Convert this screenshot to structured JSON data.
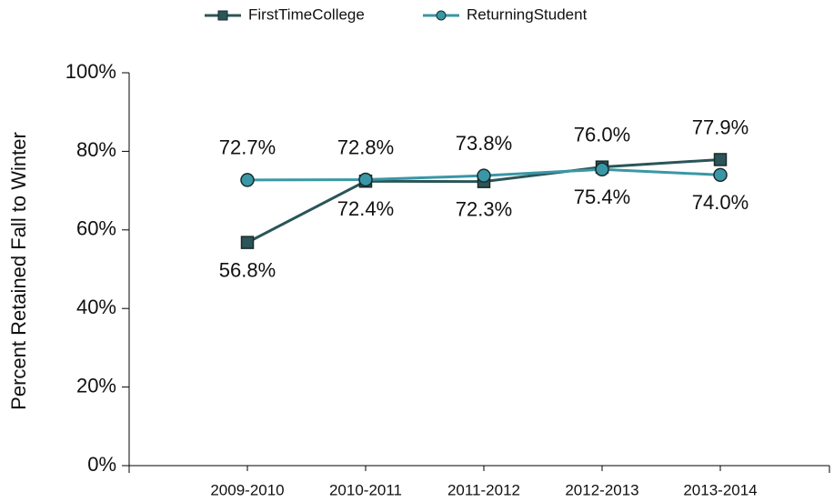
{
  "chart_data": {
    "type": "line",
    "y_label": "Percent Retained Fall to Winter",
    "categories": [
      "2009-2010",
      "2010-2011",
      "2011-2012",
      "2012-2013",
      "2013-2014"
    ],
    "series": [
      {
        "name": "FirstTimeCollege",
        "color": "#2b5558",
        "marker": "square",
        "values": [
          56.8,
          72.4,
          72.3,
          76.0,
          77.9
        ],
        "value_labels": [
          "56.8%",
          "72.4%",
          "72.3%",
          "76.0%",
          "77.9%"
        ]
      },
      {
        "name": "ReturningStudent",
        "color": "#3a97a6",
        "marker": "circle",
        "values": [
          72.7,
          72.8,
          73.8,
          75.4,
          74.0
        ],
        "value_labels": [
          "72.7%",
          "72.8%",
          "73.8%",
          "75.4%",
          "74.0%"
        ]
      }
    ],
    "ylim": [
      0,
      100
    ],
    "yticks": [
      {
        "value": 0,
        "label": "0%"
      },
      {
        "value": 20,
        "label": "20%"
      },
      {
        "value": 40,
        "label": "40%"
      },
      {
        "value": 60,
        "label": "60%"
      },
      {
        "value": 80,
        "label": "80%"
      },
      {
        "value": 100,
        "label": "100%"
      }
    ],
    "legend": "top"
  }
}
